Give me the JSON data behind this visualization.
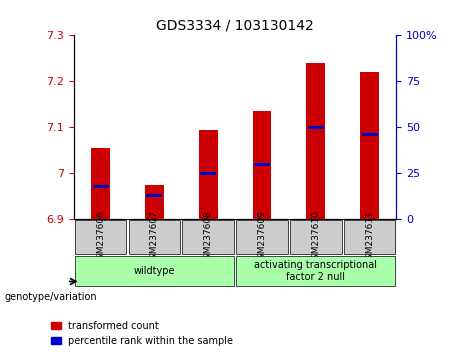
{
  "title": "GDS3334 / 103130142",
  "samples": [
    "GSM237606",
    "GSM237607",
    "GSM237608",
    "GSM237609",
    "GSM237610",
    "GSM237611"
  ],
  "red_values": [
    7.055,
    6.975,
    7.095,
    7.135,
    7.24,
    7.22
  ],
  "blue_values_pct": [
    18,
    13,
    25,
    30,
    50,
    46
  ],
  "ylim_left": [
    6.9,
    7.3
  ],
  "ylim_right": [
    0,
    100
  ],
  "yticks_left": [
    6.9,
    7.0,
    7.1,
    7.2,
    7.3
  ],
  "yticks_right": [
    0,
    25,
    50,
    75,
    100
  ],
  "ytick_labels_left": [
    "6.9",
    "7",
    "7.1",
    "7.2",
    "7.3"
  ],
  "ytick_labels_right": [
    "0",
    "25",
    "50",
    "75",
    "100%"
  ],
  "groups": [
    {
      "label": "wildtype",
      "samples": [
        0,
        1,
        2
      ],
      "color": "#aaffaa"
    },
    {
      "label": "activating transcriptional\nfactor 2 null",
      "samples": [
        3,
        4,
        5
      ],
      "color": "#aaffaa"
    }
  ],
  "bar_color": "#cc0000",
  "blue_color": "#0000cc",
  "grid_color": "#000000",
  "bar_width": 0.35,
  "bg_plot": "#ffffff",
  "bg_xtick": "#cccccc",
  "legend_red_label": "transformed count",
  "legend_blue_label": "percentile rank within the sample",
  "left_axis_color": "#cc0000",
  "right_axis_color": "#0000cc",
  "genotype_label": "genotype/variation"
}
